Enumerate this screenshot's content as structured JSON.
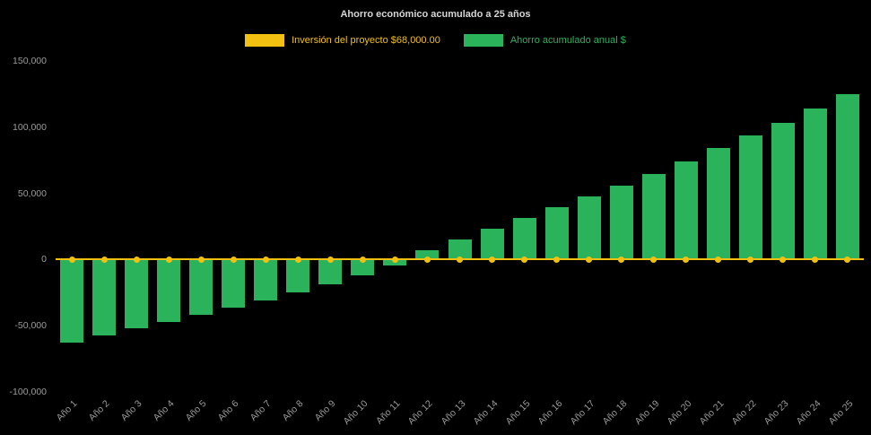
{
  "chart_data": {
    "type": "bar",
    "title": "Ahorro económico acumulado a 25 años",
    "background": "#000000",
    "text_color": "#9b9b9b",
    "grid": false,
    "legend_position": "top",
    "categories": [
      "Año 1",
      "Año 2",
      "Año 3",
      "Año 4",
      "Año 5",
      "Año 6",
      "Año 7",
      "Año 8",
      "Año 9",
      "Año 10",
      "Año 11",
      "Año 12",
      "Año 13",
      "Año 14",
      "Año 15",
      "Año 16",
      "Año 17",
      "Año 18",
      "Año 19",
      "Año 20",
      "Año 21",
      "Año 22",
      "Año 23",
      "Año 24",
      "Año 25"
    ],
    "series": [
      {
        "name": "Inversión del proyecto $68,000.00",
        "type": "line",
        "color": "#F2C011",
        "values": [
          0,
          0,
          0,
          0,
          0,
          0,
          0,
          0,
          0,
          0,
          0,
          0,
          0,
          0,
          0,
          0,
          0,
          0,
          0,
          0,
          0,
          0,
          0,
          0,
          0
        ]
      },
      {
        "name": "Ahorro acumulado anual $",
        "type": "bar",
        "color": "#2BB35C",
        "values": [
          -63000,
          -57500,
          -52000,
          -47000,
          -42000,
          -36500,
          -31000,
          -25000,
          -19000,
          -12000,
          -4500,
          7000,
          15000,
          23000,
          31500,
          39500,
          48000,
          56000,
          64500,
          74000,
          84000,
          93500,
          103000,
          114000,
          125000
        ]
      }
    ],
    "ylim": [
      -100000,
      150000
    ],
    "yticks": [
      -100000,
      -50000,
      0,
      50000,
      100000,
      150000
    ],
    "ytick_labels": [
      "-100,000",
      "-50,000",
      "0",
      "50,000",
      "100,000",
      "150,000"
    ],
    "xlabel": "",
    "ylabel": ""
  }
}
